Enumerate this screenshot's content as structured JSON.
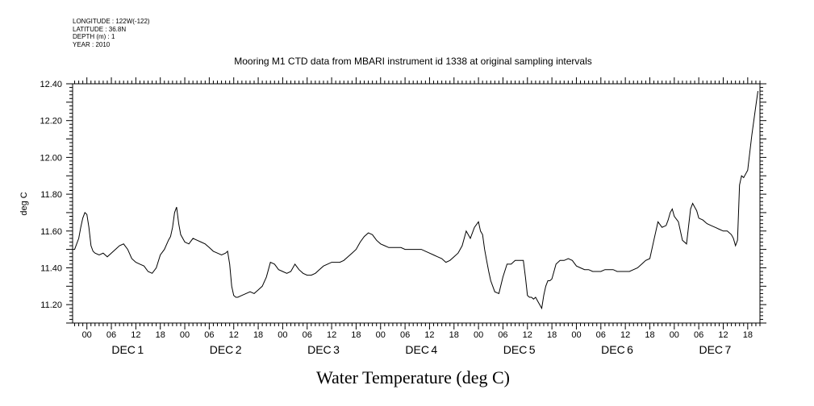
{
  "meta": {
    "longitude": "LONGITUDE : 122W(-122)",
    "latitude": "LATITUDE : 36.8N",
    "depth": "DEPTH (m) : 1",
    "year": "YEAR : 2010"
  },
  "chart_data": {
    "type": "line",
    "title": "Mooring M1 CTD data from MBARI instrument id 1338 at original sampling intervals",
    "xlabel": "Water Temperature (deg C)",
    "ylabel": "deg C",
    "ylim": [
      11.1,
      12.4
    ],
    "xlim_hours": [
      -3.5,
      165
    ],
    "yticks": [
      "11.20",
      "11.40",
      "11.60",
      "11.80",
      "12.00",
      "12.20",
      "12.40"
    ],
    "hour_tick_labels": [
      "00",
      "06",
      "12",
      "18"
    ],
    "day_labels": [
      "DEC 1",
      "DEC 2",
      "DEC 3",
      "DEC 4",
      "DEC 5",
      "DEC 6",
      "DEC 7"
    ],
    "grid": false,
    "series": [
      {
        "x": [
          -3.5,
          -3,
          -2,
          -1.5,
          -1,
          -0.5,
          0,
          0.5,
          1,
          1.5,
          2,
          3,
          4,
          5,
          6,
          6.5,
          7,
          8,
          9,
          10,
          11,
          12,
          13,
          14,
          15,
          16,
          17,
          18,
          19,
          20,
          20.5,
          21,
          21.5,
          22,
          22.5,
          23,
          24,
          25,
          26,
          27,
          28,
          29,
          30,
          31,
          32,
          33,
          34,
          34.5,
          35,
          35.5,
          36,
          36.5,
          37,
          38,
          39,
          40,
          41,
          42,
          43,
          44,
          45,
          46,
          47,
          48,
          49,
          50,
          51,
          52,
          53,
          54,
          55,
          56,
          57,
          58,
          59,
          60,
          61,
          62,
          63,
          64,
          65,
          66,
          67,
          68,
          69,
          70,
          71,
          72,
          73,
          74,
          75,
          76,
          77,
          78,
          79,
          80,
          81,
          82,
          83,
          84,
          85,
          86,
          87,
          88,
          89,
          90,
          91,
          92,
          93,
          94,
          95,
          96,
          96.5,
          97,
          97.5,
          98,
          98.5,
          99,
          100,
          101,
          102,
          103,
          104,
          105,
          106,
          107,
          107.5,
          108,
          108.5,
          109,
          109.5,
          110,
          110.5,
          111,
          111.5,
          112,
          112.5,
          113,
          113.5,
          114,
          114.5,
          115,
          116,
          117,
          118,
          119,
          120,
          121,
          122,
          123,
          124,
          125,
          126,
          127,
          128,
          129,
          130,
          131,
          132,
          133,
          134,
          135,
          136,
          137,
          138,
          139,
          140,
          141,
          142,
          142.5,
          143,
          143.5,
          144,
          145,
          146,
          147,
          148,
          148.5,
          149,
          149.5,
          150,
          151,
          152,
          153,
          154,
          155,
          156,
          157,
          158,
          158.5,
          159,
          159.5,
          160,
          160.5,
          161,
          162,
          163,
          164,
          164.5
        ],
        "y": [
          11.5,
          11.5,
          11.56,
          11.62,
          11.67,
          11.7,
          11.69,
          11.62,
          11.52,
          11.49,
          11.48,
          11.47,
          11.48,
          11.46,
          11.48,
          11.49,
          11.5,
          11.52,
          11.53,
          11.5,
          11.45,
          11.43,
          11.42,
          11.41,
          11.38,
          11.37,
          11.4,
          11.47,
          11.5,
          11.55,
          11.57,
          11.62,
          11.7,
          11.73,
          11.64,
          11.58,
          11.54,
          11.53,
          11.56,
          11.55,
          11.54,
          11.53,
          11.51,
          11.49,
          11.48,
          11.47,
          11.48,
          11.49,
          11.42,
          11.3,
          11.25,
          11.24,
          11.24,
          11.25,
          11.26,
          11.27,
          11.26,
          11.28,
          11.3,
          11.35,
          11.43,
          11.42,
          11.39,
          11.38,
          11.37,
          11.38,
          11.42,
          11.39,
          11.37,
          11.36,
          11.36,
          11.37,
          11.39,
          11.41,
          11.42,
          11.43,
          11.43,
          11.43,
          11.44,
          11.46,
          11.48,
          11.5,
          11.54,
          11.57,
          11.59,
          11.58,
          11.55,
          11.53,
          11.52,
          11.51,
          11.51,
          11.51,
          11.51,
          11.5,
          11.5,
          11.5,
          11.5,
          11.5,
          11.49,
          11.48,
          11.47,
          11.46,
          11.45,
          11.43,
          11.44,
          11.46,
          11.48,
          11.52,
          11.6,
          11.56,
          11.62,
          11.65,
          11.6,
          11.58,
          11.5,
          11.44,
          11.38,
          11.33,
          11.27,
          11.26,
          11.35,
          11.42,
          11.42,
          11.44,
          11.44,
          11.44,
          11.35,
          11.25,
          11.24,
          11.24,
          11.23,
          11.24,
          11.22,
          11.2,
          11.18,
          11.25,
          11.3,
          11.33,
          11.33,
          11.34,
          11.38,
          11.42,
          11.44,
          11.44,
          11.45,
          11.44,
          11.41,
          11.4,
          11.39,
          11.39,
          11.38,
          11.38,
          11.38,
          11.39,
          11.39,
          11.39,
          11.38,
          11.38,
          11.38,
          11.38,
          11.39,
          11.4,
          11.42,
          11.44,
          11.45,
          11.55,
          11.65,
          11.62,
          11.63,
          11.66,
          11.7,
          11.72,
          11.68,
          11.65,
          11.55,
          11.53,
          11.72,
          11.75,
          11.73,
          11.71,
          11.67,
          11.66,
          11.64,
          11.63,
          11.62,
          11.61,
          11.6,
          11.6,
          11.58,
          11.56,
          11.52,
          11.55,
          11.85,
          11.9,
          11.89,
          11.93,
          12.12,
          12.28,
          12.36
        ]
      }
    ]
  }
}
